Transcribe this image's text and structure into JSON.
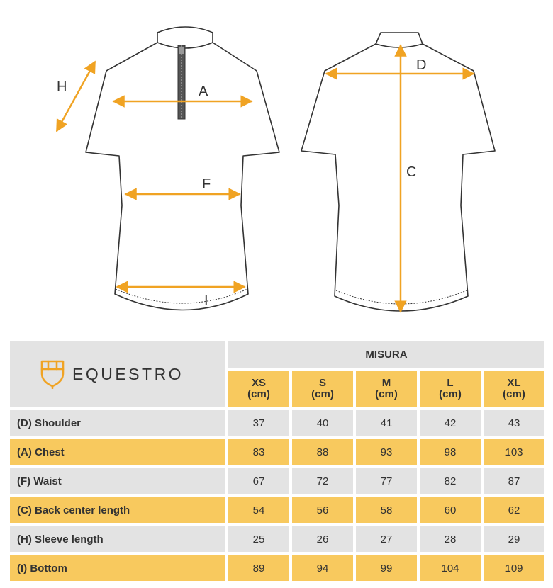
{
  "diagram": {
    "labels": {
      "a": "A",
      "c": "C",
      "d": "D",
      "f": "F",
      "h": "H",
      "i": "I"
    },
    "arrow_color": "#f0a323"
  },
  "brand": {
    "name": "EQUESTRO",
    "icon": "shield-logo-icon",
    "color": "#f0a323"
  },
  "table": {
    "header_group": "MISURA",
    "sizes": [
      {
        "size": "XS",
        "unit": "(cm)"
      },
      {
        "size": "S",
        "unit": "(cm)"
      },
      {
        "size": "M",
        "unit": "(cm)"
      },
      {
        "size": "L",
        "unit": "(cm)"
      },
      {
        "size": "XL",
        "unit": "(cm)"
      }
    ],
    "rows": [
      {
        "label": "(D) Shoulder",
        "values": [
          "37",
          "40",
          "41",
          "42",
          "43"
        ]
      },
      {
        "label": "(A) Chest",
        "values": [
          "83",
          "88",
          "93",
          "98",
          "103"
        ]
      },
      {
        "label": "(F) Waist",
        "values": [
          "67",
          "72",
          "77",
          "82",
          "87"
        ]
      },
      {
        "label": "(C) Back center length",
        "values": [
          "54",
          "56",
          "58",
          "60",
          "62"
        ]
      },
      {
        "label": "(H) Sleeve length",
        "values": [
          "25",
          "26",
          "27",
          "28",
          "29"
        ]
      },
      {
        "label": "(I) Bottom",
        "values": [
          "89",
          "94",
          "99",
          "104",
          "109"
        ]
      }
    ],
    "colors": {
      "grey": "#e3e3e3",
      "yellow": "#f8c95e"
    }
  }
}
